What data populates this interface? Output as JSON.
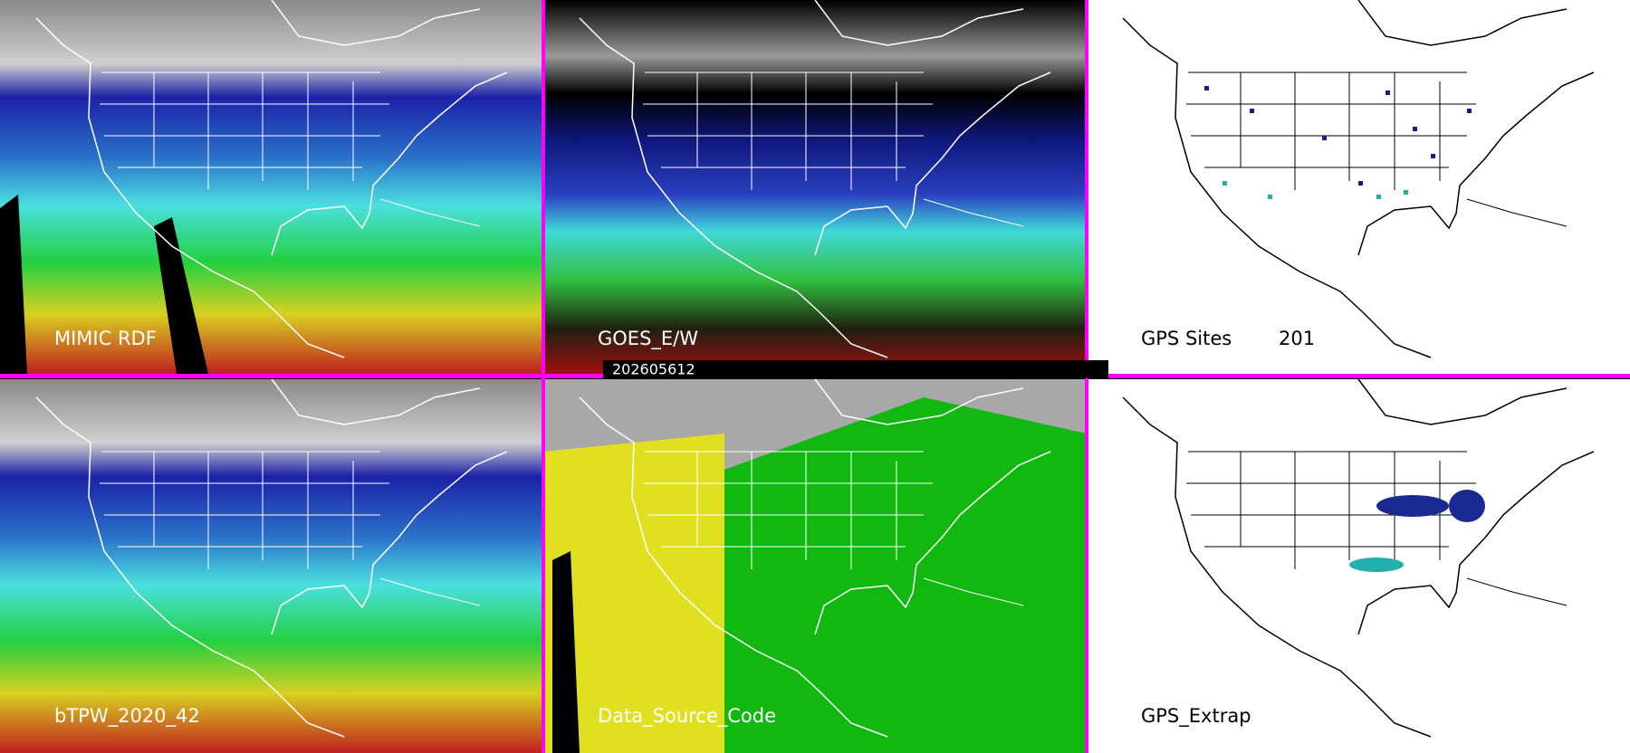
{
  "panels": [
    {
      "label": "MIMIC RDF"
    },
    {
      "label": "GOES_E/W"
    },
    {
      "label": "GPS Sites",
      "count": 201
    },
    {
      "label": "bTPW_2020_42"
    },
    {
      "label": "Data_Source_Code"
    },
    {
      "label": "GPS_Extrap"
    }
  ],
  "timestamp": "202605612"
}
